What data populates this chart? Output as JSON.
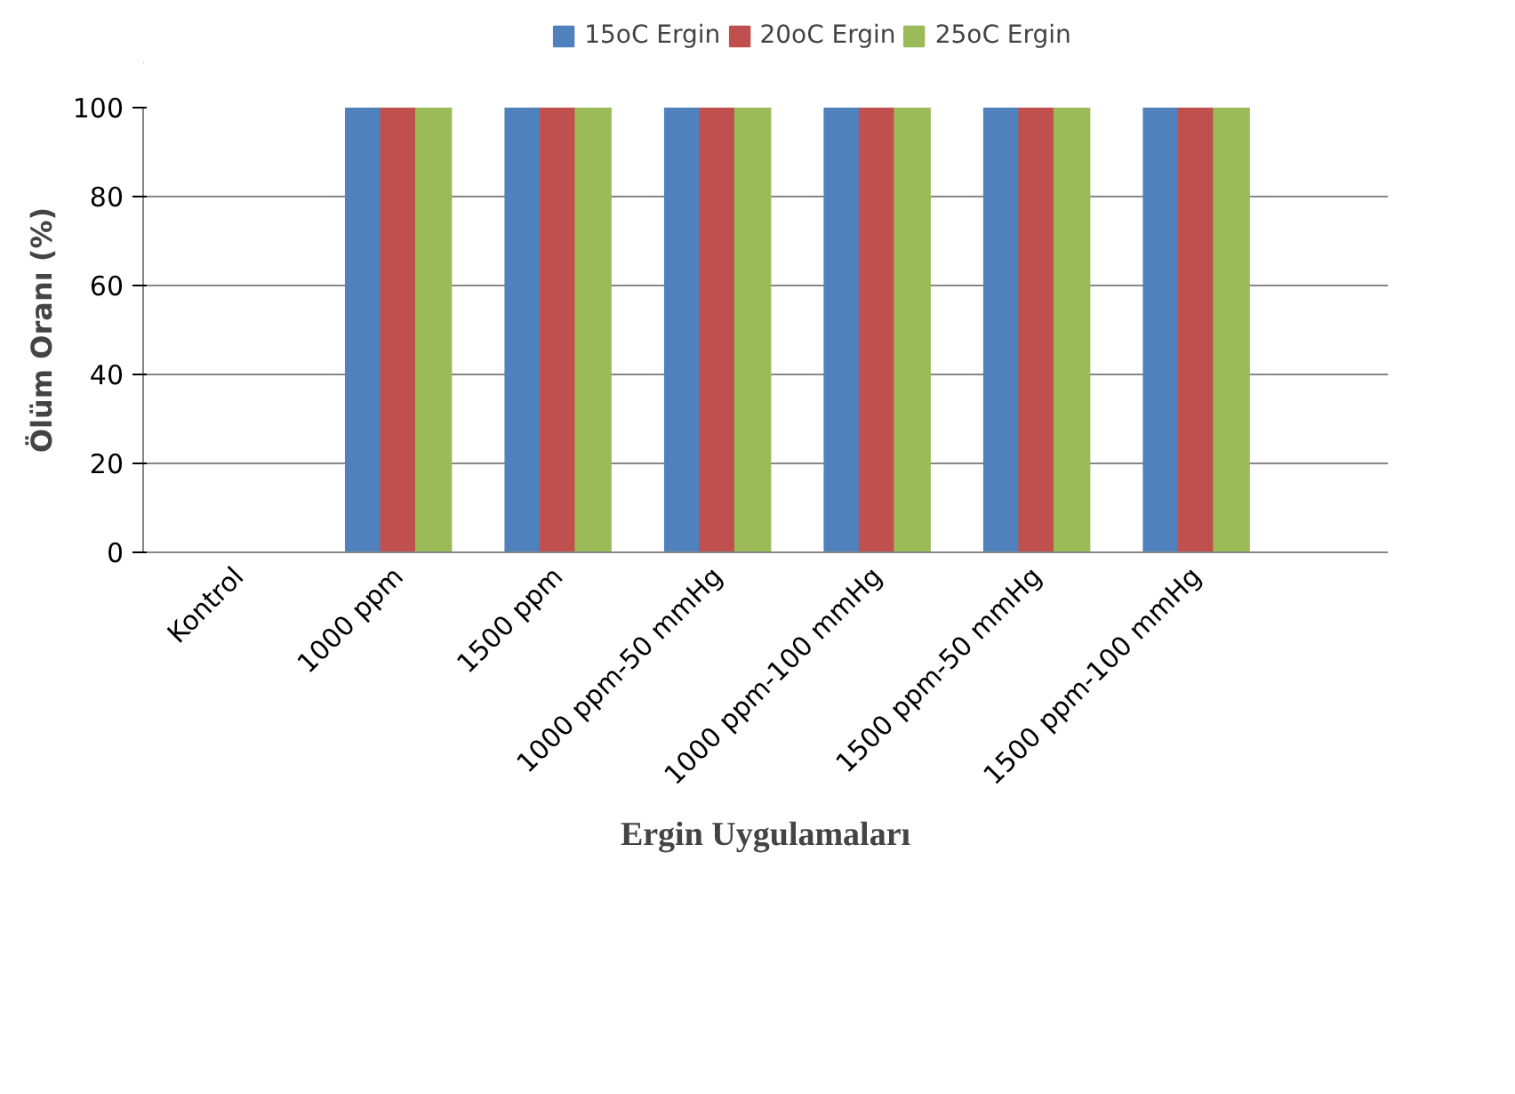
{
  "chart_data": {
    "type": "bar",
    "xlabel": "Ergin Uygulamaları",
    "ylabel": "Ölüm Oranı (%)",
    "categories": [
      "Kontrol",
      "1000 ppm",
      "1500 ppm",
      "1000 ppm-50 mmHg",
      "1000 ppm-100 mmHg",
      "1500 ppm-50 mmHg",
      "1500 ppm-100 mmHg"
    ],
    "series": [
      {
        "name": "15oC Ergin",
        "color": "#4f81bd",
        "values": [
          0,
          100,
          100,
          100,
          100,
          100,
          100
        ]
      },
      {
        "name": "20oC Ergin",
        "color": "#c0504d",
        "values": [
          0,
          100,
          100,
          100,
          100,
          100,
          100
        ]
      },
      {
        "name": "25oC Ergin",
        "color": "#9bbb59",
        "values": [
          0,
          100,
          100,
          100,
          100,
          100,
          100
        ]
      }
    ],
    "ylim": [
      0,
      100
    ],
    "yticks": [
      0,
      20,
      40,
      60,
      80,
      100
    ],
    "grid": "y",
    "legend": "top"
  }
}
